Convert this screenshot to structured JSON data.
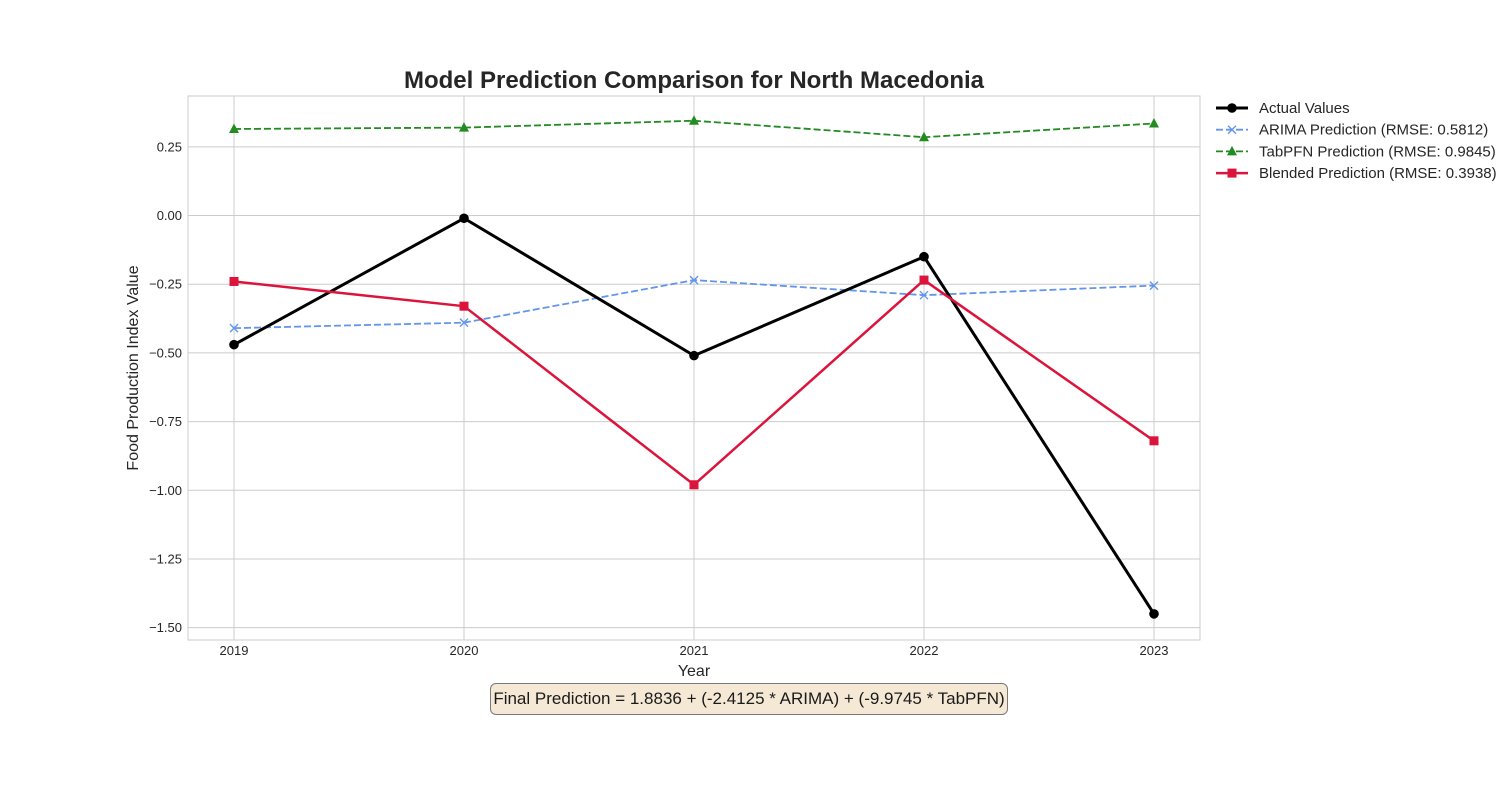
{
  "chart_data": {
    "type": "line",
    "title": "Model Prediction Comparison for North Macedonia",
    "xlabel": "Year",
    "ylabel": "Food Production Index Value",
    "categories": [
      "2019",
      "2020",
      "2021",
      "2022",
      "2023"
    ],
    "yticks": [
      "0.25",
      "0.00",
      "−0.25",
      "−0.50",
      "−0.75",
      "−1.00",
      "−1.25",
      "−1.50"
    ],
    "ytick_values": [
      0.25,
      0.0,
      -0.25,
      -0.5,
      -0.75,
      -1.0,
      -1.25,
      -1.5
    ],
    "ylim": [
      -1.545,
      0.435
    ],
    "grid": true,
    "legend_position": "outside top-right",
    "series": [
      {
        "name": "Actual Values",
        "values": [
          -0.47,
          -0.01,
          -0.51,
          -0.15,
          -1.45
        ],
        "color": "#000000",
        "marker": "circle",
        "dash": "solid"
      },
      {
        "name": "ARIMA Prediction (RMSE: 0.5812)",
        "values": [
          -0.41,
          -0.39,
          -0.235,
          -0.29,
          -0.255
        ],
        "color": "#6495ED",
        "marker": "x",
        "dash": "dashed"
      },
      {
        "name": "TabPFN Prediction (RMSE: 0.9845)",
        "values": [
          0.315,
          0.32,
          0.345,
          0.285,
          0.335
        ],
        "color": "#228B22",
        "marker": "triangle",
        "dash": "dashed"
      },
      {
        "name": "Blended Prediction (RMSE: 0.3938)",
        "values": [
          -0.24,
          -0.33,
          -0.98,
          -0.235,
          -0.82
        ],
        "color": "#DC143C",
        "marker": "square",
        "dash": "solid"
      }
    ],
    "annotation": "Final Prediction = 1.8836 + (-2.4125 * ARIMA) + (-9.9745 * TabPFN)"
  }
}
